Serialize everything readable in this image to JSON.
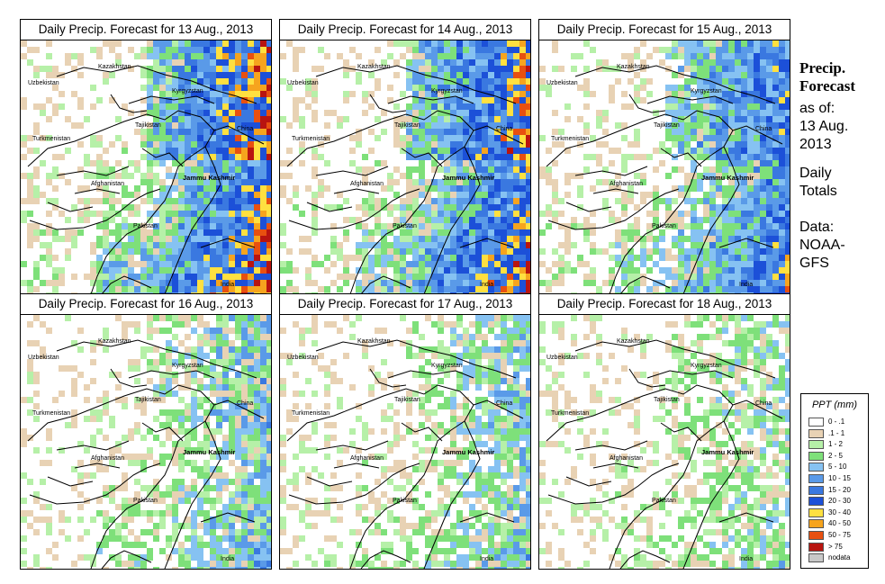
{
  "panels": [
    {
      "title": "Daily Precip. Forecast for  13 Aug., 2013",
      "intensity": 1.0
    },
    {
      "title": "Daily Precip. Forecast for  14 Aug., 2013",
      "intensity": 0.95
    },
    {
      "title": "Daily Precip. Forecast for  15 Aug., 2013",
      "intensity": 0.75
    },
    {
      "title": "Daily Precip. Forecast for  16 Aug., 2013",
      "intensity": 0.45
    },
    {
      "title": "Daily Precip. Forecast for  17 Aug., 2013",
      "intensity": 0.4
    },
    {
      "title": "Daily Precip. Forecast for  18 Aug., 2013",
      "intensity": 0.3
    }
  ],
  "map_labels": {
    "kazakhstan": "Kazakhstan",
    "uzbekistan": "Uzbekistan",
    "kyrgyzstan": "Kyrgyzstan",
    "tajikistan": "Tajikistan",
    "turkmenistan": "Turkmenistan",
    "china": "China",
    "afghanistan": "Afghanistan",
    "jammu_kashmir": "Jammu Kashmir",
    "pakistan": "Pakistan",
    "india": "India"
  },
  "side": {
    "title_line1": "Precip.",
    "title_line2": "Forecast",
    "asof_line1": "as of:",
    "asof_line2": "13 Aug.",
    "asof_line3": "2013",
    "totals_line1": "Daily",
    "totals_line2": "Totals",
    "data_line1": "Data:",
    "data_line2": "NOAA-",
    "data_line3": "GFS"
  },
  "legend": {
    "title": "PPT (mm)",
    "items": [
      {
        "label": "0 - .1",
        "color": "#ffffff"
      },
      {
        "label": ".1 - 1",
        "color": "#e8d2b4"
      },
      {
        "label": "1 - 2",
        "color": "#b6f0a8"
      },
      {
        "label": "2 - 5",
        "color": "#7ee07a"
      },
      {
        "label": "5 - 10",
        "color": "#86c2f2"
      },
      {
        "label": "10 - 15",
        "color": "#5a9ae8"
      },
      {
        "label": "15 - 20",
        "color": "#3a78e0"
      },
      {
        "label": "20 - 30",
        "color": "#1c50d8"
      },
      {
        "label": "30 - 40",
        "color": "#ffe040"
      },
      {
        "label": "40 - 50",
        "color": "#f6a41e"
      },
      {
        "label": "50 - 75",
        "color": "#e85010"
      },
      {
        "label": "> 75",
        "color": "#b81410"
      },
      {
        "label": "nodata",
        "color": "#c8c8c8"
      }
    ]
  }
}
